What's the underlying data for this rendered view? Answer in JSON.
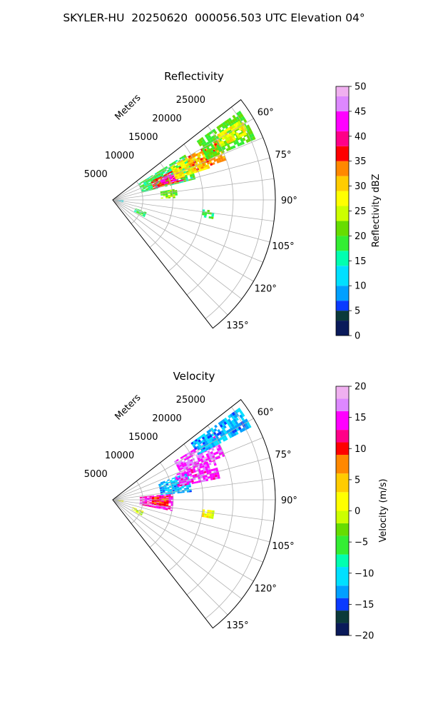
{
  "figure": {
    "title": "SKYLER-HU  20250620  000056.503 UTC Elevation 04°",
    "colors": {
      "grid": "#b0b0b0",
      "frame": "#000000"
    }
  },
  "chart_data": [
    {
      "type": "heatmap",
      "title": "Reflectivity",
      "projection": "polar sector",
      "range_label": "Meters",
      "range_ticks": [
        "5000",
        "10000",
        "15000",
        "20000",
        "25000"
      ],
      "rlim": [
        0,
        27000
      ],
      "azimuth_ticks": [
        "60°",
        "75°",
        "90°",
        "105°",
        "120°",
        "135°"
      ],
      "azimuth_range": [
        52,
        142
      ],
      "grid": true,
      "colorbar": {
        "label": "Reflectivity dBZ",
        "ticks": [
          "0",
          "5",
          "10",
          "15",
          "20",
          "25",
          "30",
          "35",
          "40",
          "45",
          "50"
        ],
        "range": [
          0,
          50
        ],
        "stops": [
          [
            0,
            "#0a1a5a"
          ],
          [
            3,
            "#0b3a3a"
          ],
          [
            5,
            "#0a3aff"
          ],
          [
            7,
            "#00a0ff"
          ],
          [
            10,
            "#00e0ff"
          ],
          [
            14,
            "#00ffb0"
          ],
          [
            17,
            "#33ee33"
          ],
          [
            20,
            "#66dd00"
          ],
          [
            23,
            "#ccff00"
          ],
          [
            26,
            "#ffff00"
          ],
          [
            29,
            "#ffcc00"
          ],
          [
            32,
            "#ff8800"
          ],
          [
            35,
            "#ff0000"
          ],
          [
            38,
            "#ff0088"
          ],
          [
            41,
            "#ff00ff"
          ],
          [
            45,
            "#dd88ff"
          ],
          [
            48,
            "#f0b0f0"
          ],
          [
            50,
            "#ffe8ff"
          ]
        ]
      },
      "echo_regions": [
        {
          "r": [
            5000,
            14000
          ],
          "az": [
            58,
            76
          ],
          "value": 18
        },
        {
          "r": [
            7000,
            12500
          ],
          "az": [
            64,
            74
          ],
          "value": 36
        },
        {
          "r": [
            8500,
            11000
          ],
          "az": [
            66,
            73
          ],
          "value": 43
        },
        {
          "r": [
            11000,
            17000
          ],
          "az": [
            60,
            72
          ],
          "value": 28
        },
        {
          "r": [
            14000,
            20000
          ],
          "az": [
            60,
            70
          ],
          "value": 33
        },
        {
          "r": [
            17000,
            25500
          ],
          "az": [
            55,
            66
          ],
          "value": 20
        },
        {
          "r": [
            20000,
            25000
          ],
          "az": [
            58,
            64
          ],
          "value": 27
        },
        {
          "r": [
            8000,
            10500
          ],
          "az": [
            80,
            88
          ],
          "value": 22
        },
        {
          "r": [
            4000,
            6000
          ],
          "az": [
            110,
            118
          ],
          "value": 18
        },
        {
          "r": [
            200,
            1500
          ],
          "az": [
            92,
            102
          ],
          "value": 12
        },
        {
          "r": [
            15000,
            17000
          ],
          "az": [
            96,
            100
          ],
          "value": 18
        }
      ]
    },
    {
      "type": "heatmap",
      "title": "Velocity",
      "projection": "polar sector",
      "range_label": "Meters",
      "range_ticks": [
        "5000",
        "10000",
        "15000",
        "20000",
        "25000"
      ],
      "rlim": [
        0,
        27000
      ],
      "azimuth_ticks": [
        "60°",
        "75°",
        "90°",
        "105°",
        "120°",
        "135°"
      ],
      "azimuth_range": [
        52,
        142
      ],
      "grid": true,
      "colorbar": {
        "label": "Velocity (m/s)",
        "ticks": [
          "20",
          "15",
          "10",
          "5",
          "0",
          "−5",
          "−10",
          "−15",
          "−20"
        ],
        "range": [
          -20,
          20
        ],
        "stops": [
          [
            -20,
            "#0a1a5a"
          ],
          [
            -18,
            "#0b3a3a"
          ],
          [
            -16,
            "#0a3aff"
          ],
          [
            -14,
            "#00a0ff"
          ],
          [
            -12,
            "#00e0ff"
          ],
          [
            -9,
            "#00ffb0"
          ],
          [
            -7,
            "#33ee33"
          ],
          [
            -4,
            "#66dd00"
          ],
          [
            -2,
            "#ccff00"
          ],
          [
            0,
            "#ffff00"
          ],
          [
            3,
            "#ffcc00"
          ],
          [
            6,
            "#ff8800"
          ],
          [
            9,
            "#ff0000"
          ],
          [
            11,
            "#ff0088"
          ],
          [
            13,
            "#ff00ff"
          ],
          [
            16,
            "#dd88ff"
          ],
          [
            18,
            "#f0b0f0"
          ],
          [
            20,
            "#ffe8ff"
          ]
        ]
      },
      "echo_regions": [
        {
          "r": [
            4500,
            10000
          ],
          "az": [
            84,
            100
          ],
          "value": 14
        },
        {
          "r": [
            6500,
            9000
          ],
          "az": [
            86,
            96
          ],
          "value": 9
        },
        {
          "r": [
            8000,
            13000
          ],
          "az": [
            70,
            84
          ],
          "value": -12
        },
        {
          "r": [
            11000,
            18000
          ],
          "az": [
            68,
            78
          ],
          "value": 15
        },
        {
          "r": [
            12000,
            20000
          ],
          "az": [
            58,
            68
          ],
          "value": 16
        },
        {
          "r": [
            16000,
            26000
          ],
          "az": [
            54,
            62
          ],
          "value": -12
        },
        {
          "r": [
            3500,
            5500
          ],
          "az": [
            110,
            118
          ],
          "value": 0
        },
        {
          "r": [
            200,
            1500
          ],
          "az": [
            92,
            102
          ],
          "value": 0
        },
        {
          "r": [
            15000,
            17000
          ],
          "az": [
            96,
            100
          ],
          "value": 1
        }
      ]
    }
  ]
}
